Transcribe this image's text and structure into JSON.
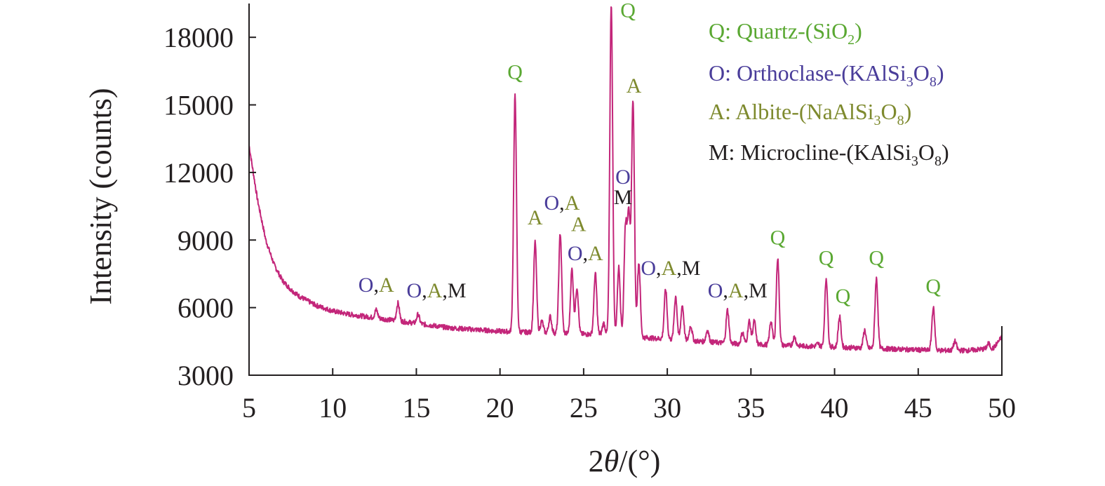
{
  "chart_data": {
    "type": "line",
    "title": "",
    "xlabel_prefix": "2",
    "xlabel_symbol": "θ",
    "xlabel_suffix": "/(°)",
    "ylabel": "Intensity (counts)",
    "xlim": [
      5,
      50
    ],
    "ylim": [
      3000,
      19500
    ],
    "xticks": [
      5,
      10,
      15,
      20,
      25,
      30,
      35,
      40,
      45,
      50
    ],
    "yticks": [
      3000,
      6000,
      9000,
      12000,
      15000,
      18000
    ],
    "grid": false,
    "legend_position": "top-right",
    "colors": {
      "line": "#c3267a",
      "Q": "#5aa832",
      "O": "#4a3d9a",
      "A": "#7e8a2e",
      "M": "#231f20",
      "axis": "#231f20"
    },
    "legend": [
      {
        "key": "Q",
        "parts": [
          {
            "t": "Q: Quartz-(SiO"
          },
          {
            "t": "2",
            "sub": true
          },
          {
            "t": ")"
          }
        ]
      },
      {
        "key": "O",
        "parts": [
          {
            "t": "O: Orthoclase-(KAlSi"
          },
          {
            "t": "3",
            "sub": true
          },
          {
            "t": "O"
          },
          {
            "t": "8",
            "sub": true
          },
          {
            "t": ")"
          }
        ]
      },
      {
        "key": "A",
        "parts": [
          {
            "t": "A: Albite-(NaAlSi"
          },
          {
            "t": "3",
            "sub": true
          },
          {
            "t": "O"
          },
          {
            "t": "8",
            "sub": true
          },
          {
            "t": ")"
          }
        ]
      },
      {
        "key": "M",
        "parts": [
          {
            "t": "M: Microcline-(KAlSi"
          },
          {
            "t": "3",
            "sub": true
          },
          {
            "t": "O"
          },
          {
            "t": "8",
            "sub": true
          },
          {
            "t": ")"
          }
        ]
      }
    ],
    "baseline": [
      [
        5,
        13200
      ],
      [
        5.5,
        10800
      ],
      [
        6,
        9000
      ],
      [
        6.5,
        7900
      ],
      [
        7,
        7200
      ],
      [
        7.5,
        6800
      ],
      [
        8,
        6500
      ],
      [
        9,
        6100
      ],
      [
        10,
        5850
      ],
      [
        11,
        5700
      ],
      [
        12,
        5600
      ],
      [
        13,
        5500
      ],
      [
        14,
        5400
      ],
      [
        15,
        5300
      ],
      [
        16,
        5200
      ],
      [
        17,
        5100
      ],
      [
        18,
        5050
      ],
      [
        19,
        5000
      ],
      [
        20,
        4950
      ],
      [
        22,
        4900
      ],
      [
        24,
        4850
      ],
      [
        26,
        4800
      ],
      [
        28,
        4700
      ],
      [
        30,
        4600
      ],
      [
        32,
        4500
      ],
      [
        34,
        4400
      ],
      [
        36,
        4350
      ],
      [
        38,
        4300
      ],
      [
        40,
        4250
      ],
      [
        42,
        4200
      ],
      [
        44,
        4150
      ],
      [
        46,
        4100
      ],
      [
        48,
        4100
      ],
      [
        49.5,
        4200
      ],
      [
        50,
        4700
      ]
    ],
    "peaks": [
      [
        12.6,
        5900
      ],
      [
        13.9,
        6200
      ],
      [
        15.1,
        5700
      ],
      [
        20.9,
        15400
      ],
      [
        22.1,
        8900
      ],
      [
        22.5,
        5400
      ],
      [
        23.0,
        5600
      ],
      [
        23.6,
        9300
      ],
      [
        24.3,
        7700
      ],
      [
        24.6,
        6900
      ],
      [
        25.7,
        7500
      ],
      [
        26.2,
        5300
      ],
      [
        26.65,
        19500
      ],
      [
        27.1,
        7800
      ],
      [
        27.5,
        9500
      ],
      [
        27.7,
        10100
      ],
      [
        27.95,
        15200
      ],
      [
        28.3,
        8000
      ],
      [
        29.9,
        6800
      ],
      [
        30.5,
        6500
      ],
      [
        30.9,
        6100
      ],
      [
        31.4,
        5200
      ],
      [
        32.4,
        5000
      ],
      [
        33.6,
        5900
      ],
      [
        34.5,
        4900
      ],
      [
        34.9,
        5400
      ],
      [
        35.2,
        5400
      ],
      [
        36.2,
        5400
      ],
      [
        36.6,
        8200
      ],
      [
        37.6,
        4700
      ],
      [
        39.0,
        4400
      ],
      [
        39.5,
        7300
      ],
      [
        40.3,
        5600
      ],
      [
        41.8,
        5000
      ],
      [
        42.5,
        7300
      ],
      [
        45.9,
        6000
      ],
      [
        47.2,
        4500
      ],
      [
        49.2,
        4400
      ]
    ],
    "annotations": [
      {
        "x": 12.6,
        "y": 6700,
        "tokens": [
          {
            "t": "O",
            "k": "O"
          },
          {
            "t": ",",
            "k": "M"
          },
          {
            "t": "A",
            "k": "A"
          }
        ]
      },
      {
        "x": 16.2,
        "y": 6450,
        "tokens": [
          {
            "t": "O",
            "k": "O"
          },
          {
            "t": ",",
            "k": "M"
          },
          {
            "t": "A",
            "k": "A"
          },
          {
            "t": ",M",
            "k": "M"
          }
        ]
      },
      {
        "x": 20.9,
        "y": 16150,
        "tokens": [
          {
            "t": "Q",
            "k": "Q"
          }
        ]
      },
      {
        "x": 22.1,
        "y": 9700,
        "tokens": [
          {
            "t": "A",
            "k": "A"
          }
        ]
      },
      {
        "x": 23.7,
        "y": 10350,
        "tokens": [
          {
            "t": "O",
            "k": "O"
          },
          {
            "t": ",",
            "k": "M"
          },
          {
            "t": "A",
            "k": "A"
          }
        ]
      },
      {
        "x": 24.7,
        "y": 9400,
        "tokens": [
          {
            "t": "A",
            "k": "A"
          }
        ]
      },
      {
        "x": 25.1,
        "y": 8100,
        "tokens": [
          {
            "t": "O",
            "k": "O"
          },
          {
            "t": ",",
            "k": "M"
          },
          {
            "t": "A",
            "k": "A"
          }
        ]
      },
      {
        "x": 27.35,
        "y": 11500,
        "tokens": [
          {
            "t": "O",
            "k": "O"
          }
        ]
      },
      {
        "x": 27.35,
        "y": 10600,
        "tokens": [
          {
            "t": "M",
            "k": "M"
          }
        ]
      },
      {
        "x": 27.65,
        "y": 18900,
        "tokens": [
          {
            "t": "Q",
            "k": "Q"
          }
        ]
      },
      {
        "x": 28.0,
        "y": 15550,
        "tokens": [
          {
            "t": "A",
            "k": "A"
          }
        ]
      },
      {
        "x": 30.2,
        "y": 7450,
        "tokens": [
          {
            "t": "O",
            "k": "O"
          },
          {
            "t": ",",
            "k": "M"
          },
          {
            "t": "A",
            "k": "A"
          },
          {
            "t": ",M",
            "k": "M"
          }
        ]
      },
      {
        "x": 34.2,
        "y": 6450,
        "tokens": [
          {
            "t": "O",
            "k": "O"
          },
          {
            "t": ",",
            "k": "M"
          },
          {
            "t": "A",
            "k": "A"
          },
          {
            "t": ",M",
            "k": "M"
          }
        ]
      },
      {
        "x": 36.6,
        "y": 8800,
        "tokens": [
          {
            "t": "Q",
            "k": "Q"
          }
        ]
      },
      {
        "x": 39.5,
        "y": 7900,
        "tokens": [
          {
            "t": "Q",
            "k": "Q"
          }
        ]
      },
      {
        "x": 40.5,
        "y": 6200,
        "tokens": [
          {
            "t": "Q",
            "k": "Q"
          }
        ]
      },
      {
        "x": 42.5,
        "y": 7900,
        "tokens": [
          {
            "t": "Q",
            "k": "Q"
          }
        ]
      },
      {
        "x": 45.9,
        "y": 6650,
        "tokens": [
          {
            "t": "Q",
            "k": "Q"
          }
        ]
      }
    ]
  }
}
